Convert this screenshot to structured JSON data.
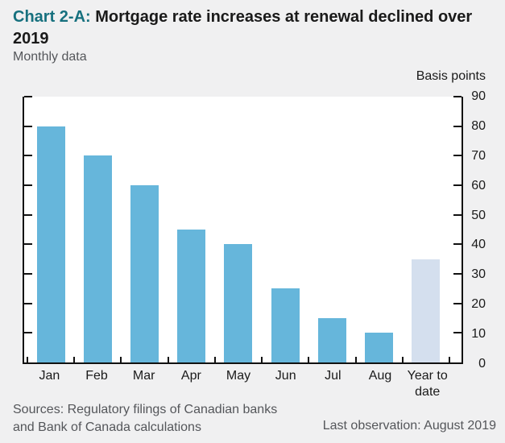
{
  "header": {
    "chart_label": "Chart 2-A:",
    "title": "Mortgage rate increases at renewal declined over 2019",
    "subtitle": "Monthly data",
    "accent_color": "#16707e"
  },
  "chart_data": {
    "type": "bar",
    "categories": [
      "Jan",
      "Feb",
      "Mar",
      "Apr",
      "May",
      "Jun",
      "Jul",
      "Aug",
      "Year to date"
    ],
    "values": [
      80,
      70,
      60,
      45,
      40,
      25,
      15,
      10,
      35
    ],
    "title": "Chart 2-A: Mortgage rate increases at renewal declined over 2019",
    "subtitle": "Monthly data",
    "xlabel": "",
    "ylabel": "Basis points",
    "ylim": [
      0,
      90
    ],
    "ytick_step": 10,
    "grid": false,
    "legend_position": "none",
    "bar_color": "#66b6db",
    "highlight_color": "#d4dfee",
    "highlight_index": 8,
    "axis_label_side": "right"
  },
  "footer": {
    "sources_line1": "Sources: Regulatory filings of Canadian banks",
    "sources_line2": "and Bank of Canada calculations",
    "last_observation": "Last observation: August 2019"
  }
}
